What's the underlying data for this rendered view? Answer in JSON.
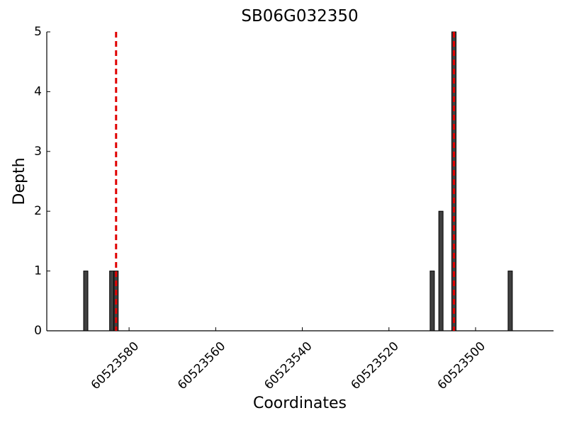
{
  "chart_data": {
    "type": "bar",
    "title": "SB06G032350",
    "x_label": "Coordinates",
    "y_label": "Depth",
    "x": [
      60523590,
      60523584,
      60523583,
      60523510,
      60523508,
      60523505,
      60523492
    ],
    "values": [
      1,
      1,
      1,
      1,
      2,
      5,
      1
    ],
    "color": "#404040",
    "xlim": [
      60523599,
      60523482
    ],
    "xticks": [
      60523580,
      60523560,
      60523540,
      60523520,
      60523500
    ],
    "ylim": [
      0,
      5
    ],
    "yticks": [
      0,
      1,
      2,
      3,
      4,
      5
    ],
    "grid": false,
    "vlines": [
      60523583,
      60523505
    ],
    "vline_color": "#e00000"
  }
}
